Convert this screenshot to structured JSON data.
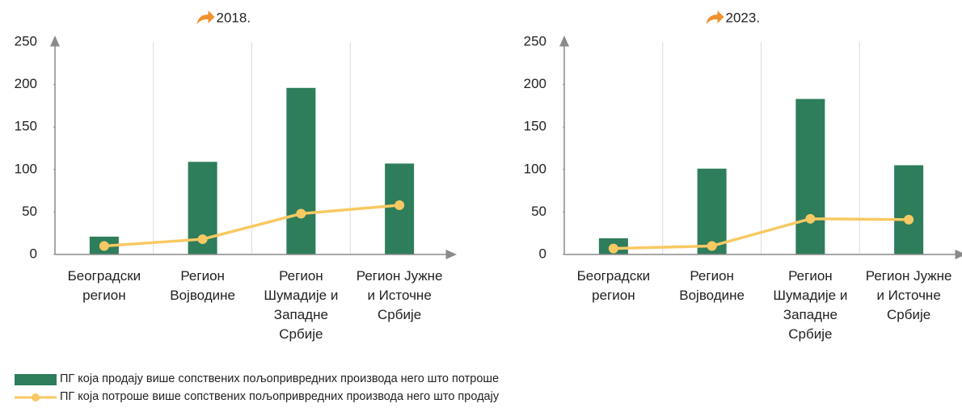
{
  "chart_data": [
    {
      "type": "bar-line",
      "title": "2018.",
      "categories": [
        "Београдски регион",
        "Регион Војводине",
        "Регион Шумадије и Западне Србије",
        "Регион Јужне и Источне Србије"
      ],
      "series": [
        {
          "name": "ПГ која продају више сопствених пољопривредних производа него што потроше",
          "type": "bar",
          "color": "#2e7d5b",
          "values": [
            21,
            109,
            196,
            107
          ]
        },
        {
          "name": "ПГ која потроше више сопствених пољопривредних производа него што продају",
          "type": "line",
          "color": "#f8c963",
          "values": [
            10,
            18,
            48,
            58
          ]
        }
      ],
      "ylim": [
        0,
        250
      ],
      "yticks": [
        0,
        50,
        100,
        150,
        200,
        250
      ],
      "grid": true
    },
    {
      "type": "bar-line",
      "title": "2023.",
      "categories": [
        "Београдски регион",
        "Регион Војводине",
        "Регион Шумадије и Западне Србије",
        "Регион Јужне и Источне Србије"
      ],
      "series": [
        {
          "name": "ПГ која продају више сопствених пољопривредних производа него што потроше",
          "type": "bar",
          "color": "#2e7d5b",
          "values": [
            19,
            101,
            183,
            105
          ]
        },
        {
          "name": "ПГ која потроше више сопствених пољопривредних производа него што продају",
          "type": "line",
          "color": "#f8c963",
          "values": [
            7,
            10,
            42,
            41
          ]
        }
      ],
      "ylim": [
        0,
        250
      ],
      "yticks": [
        0,
        50,
        100,
        150,
        200,
        250
      ],
      "grid": true
    }
  ]
}
